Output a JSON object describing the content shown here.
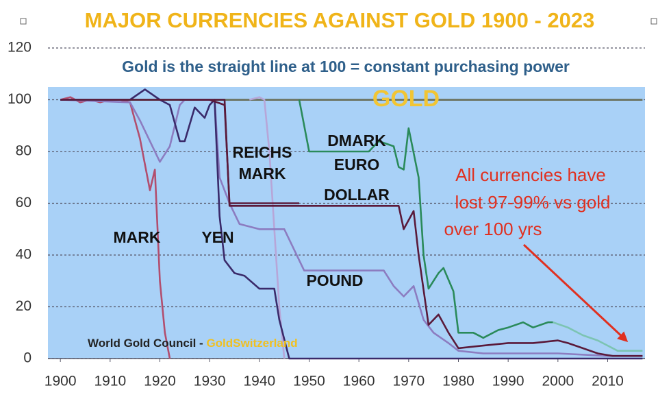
{
  "chart_data": {
    "type": "line",
    "title": "MAJOR CURRENCIES AGAINST GOLD 1900 - 2023",
    "subtitle": "Gold is the straight line at 100 = constant purchasing power",
    "annotation": [
      "All currencies have",
      "lost 97-99% vs gold",
      "over 100 yrs"
    ],
    "source": [
      "World Gold Council - ",
      "GoldSwitzerland"
    ],
    "xlim": [
      1897.5,
      2017.5
    ],
    "ylim": [
      0,
      120
    ],
    "xticks": [
      1900,
      1910,
      1920,
      1930,
      1940,
      1950,
      1960,
      1970,
      1980,
      1990,
      2000,
      2010
    ],
    "yticks": [
      0,
      20,
      40,
      60,
      80,
      100,
      120
    ],
    "grid": true,
    "series": [
      {
        "name": "GOLD",
        "color": "#6f7868",
        "x": [
          1900,
          2017
        ],
        "values": [
          100,
          100
        ]
      },
      {
        "name": "MARK",
        "color": "#b24e6e",
        "x": [
          1900,
          1902,
          1904,
          1906,
          1908,
          1910,
          1912,
          1914,
          1916,
          1918,
          1919,
          1920,
          1921,
          1922
        ],
        "values": [
          100,
          101,
          99,
          100,
          99,
          100,
          100,
          99,
          85,
          65,
          73,
          30,
          10,
          0
        ]
      },
      {
        "color": "#b7a6d8",
        "x": [
          1938,
          1940,
          1941,
          1942,
          1944,
          1945
        ],
        "values": [
          100,
          101,
          100,
          80,
          20,
          0
        ]
      },
      {
        "name": "POUND",
        "color": "#8c7cc0",
        "x": [
          1900,
          1914,
          1916,
          1920,
          1922,
          1924,
          1925,
          1931,
          1932,
          1934,
          1936,
          1940,
          1945,
          1949,
          1965,
          1967,
          1969,
          1971,
          1973,
          1975,
          1978,
          1980,
          1985,
          1990,
          2000,
          2010,
          2017
        ],
        "values": [
          100,
          99,
          92,
          76,
          82,
          98,
          100,
          100,
          70,
          60,
          52,
          50,
          50,
          34,
          34,
          28,
          24,
          28,
          15,
          10,
          6,
          3,
          2,
          2,
          2,
          1,
          1
        ]
      },
      {
        "name": "YEN",
        "color": "#3a2a6a",
        "x": [
          1900,
          1914,
          1917,
          1920,
          1922,
          1924,
          1925,
          1927,
          1929,
          1930,
          1931,
          1932,
          1933,
          1935,
          1937,
          1940,
          1943,
          1944,
          1946,
          2017
        ],
        "values": [
          100,
          100,
          104,
          100,
          98,
          84,
          84,
          97,
          93,
          98,
          100,
          55,
          38,
          33,
          32,
          27,
          27,
          15,
          0,
          0
        ]
      },
      {
        "name": "REICHS MARK",
        "color": "#5a1a3a",
        "x": [
          1924,
          1930,
          1933,
          1934,
          1948
        ],
        "values": [
          100,
          100,
          98,
          60,
          60
        ]
      },
      {
        "name": "DOLLAR",
        "color": "#5a1a3a",
        "x": [
          1900,
          1933,
          1934,
          1968,
          1969,
          1971,
          1972,
          1974,
          1976,
          1978,
          1980,
          1985,
          1990,
          1995,
          2000,
          2002,
          2005,
          2008,
          2011,
          2017
        ],
        "values": [
          100,
          100,
          59,
          59,
          50,
          57,
          40,
          13,
          17,
          10,
          4,
          5,
          6,
          6,
          7,
          6,
          4,
          2,
          1,
          1
        ]
      },
      {
        "name": "DMARK",
        "color": "#2a8a5a",
        "x": [
          1948,
          1950,
          1962,
          1964,
          1967,
          1968,
          1969,
          1970,
          1972,
          1973,
          1974,
          1976,
          1977,
          1979,
          1980,
          1983,
          1985,
          1988,
          1990,
          1993,
          1995,
          1998,
          1999
        ],
        "values": [
          100,
          80,
          80,
          84,
          82,
          74,
          73,
          89,
          70,
          40,
          27,
          33,
          35,
          26,
          10,
          10,
          8,
          11,
          12,
          14,
          12,
          14,
          14
        ]
      },
      {
        "name": "EURO",
        "color": "#7cc4b2",
        "x": [
          1999,
          2002,
          2005,
          2008,
          2010,
          2012,
          2015,
          2017
        ],
        "values": [
          14,
          12,
          9,
          7,
          5,
          3,
          3,
          3
        ]
      }
    ]
  }
}
